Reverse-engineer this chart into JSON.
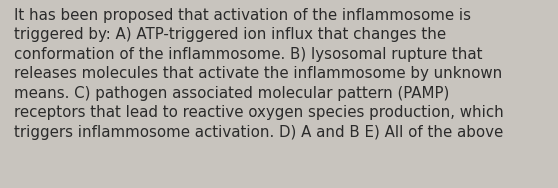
{
  "lines": [
    "It has been proposed that activation of the inflammosome is",
    "triggered by: A) ATP-triggered ion influx that changes the",
    "conformation of the inflammosome. B) lysosomal rupture that",
    "releases molecules that activate the inflammosome by unknown",
    "means. C) pathogen associated molecular pattern (PAMP)",
    "receptors that lead to reactive oxygen species production, which",
    "triggers inflammosome activation. D) A and B E) All of the above"
  ],
  "background_color": "#c8c4be",
  "text_color": "#2b2b2b",
  "font_size": 10.8,
  "fig_width": 5.58,
  "fig_height": 1.88,
  "dpi": 100
}
